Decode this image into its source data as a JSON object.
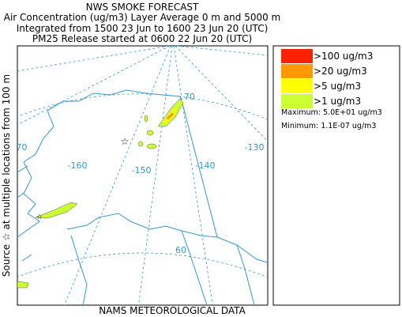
{
  "header": {
    "title": "NWS SMOKE FORECAST",
    "lines": [
      "Air Concentration (ug/m3) Layer Average    0 m and  5000 m",
      "Integrated from 1500 23 Jun to 1600 23 Jun 20 (UTC)",
      "PM25 Release started at 0600 22 Jun 20 (UTC)"
    ]
  },
  "legend": {
    "entries": [
      {
        "label": ">100 ug/m3",
        "color": "#ff2200"
      },
      {
        "label": ">20 ug/m3",
        "color": "#ff9900"
      },
      {
        "label": ">5 ug/m3",
        "color": "#ffff00"
      },
      {
        "label": ">1 ug/m3",
        "color": "#ccff33"
      }
    ],
    "maximum": "Maximum: 5.0E+01 ug/m3",
    "minimum": "Minimum: 1.1E-07 ug/m3"
  },
  "map": {
    "labels": [
      "70",
      "-170",
      "-160",
      "-150",
      "-140",
      "-130",
      "60"
    ]
  },
  "side_label": "Source ☆ at multiple locations   from  100 m",
  "footer": "NAMS METEOROLOGICAL DATA"
}
